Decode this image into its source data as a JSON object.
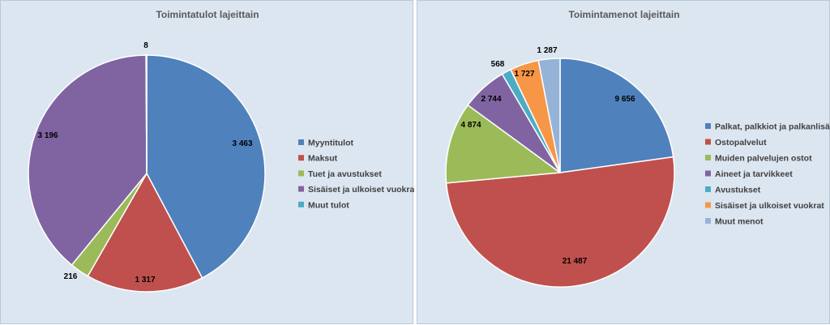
{
  "chart_data": [
    {
      "type": "pie",
      "title": "Toimintatulot lajeittain",
      "legend_position": "right",
      "categories": [
        "Myyntitulot",
        "Maksut",
        "Tuet ja avustukset",
        "Sisäiset ja ulkoiset vuokrat",
        "Muut tulot"
      ],
      "values": [
        3463,
        1317,
        216,
        3196,
        8
      ],
      "labels": [
        "3 463",
        "1 317",
        "216",
        "3 196",
        "8"
      ],
      "colors": [
        "#4f81bd",
        "#c0504d",
        "#9bbb59",
        "#8064a2",
        "#4bacc6"
      ]
    },
    {
      "type": "pie",
      "title": "Toimintamenot lajeittain",
      "legend_position": "right",
      "categories": [
        "Palkat, palkkiot ja palkanlisät",
        "Ostopalvelut",
        "Muiden palvelujen ostot",
        "Aineet ja tarvikkeet",
        "Avustukset",
        "Sisäiset ja ulkoiset vuokrat",
        "Muut menot"
      ],
      "values": [
        9656,
        21487,
        4874,
        2744,
        568,
        1727,
        1287
      ],
      "labels": [
        "9 656",
        "21 487",
        "4 874",
        "2 744",
        "568",
        "1 727",
        "1 287"
      ],
      "colors": [
        "#4f81bd",
        "#c0504d",
        "#9bbb59",
        "#8064a2",
        "#4bacc6",
        "#f79646",
        "#95b3d7"
      ]
    }
  ]
}
